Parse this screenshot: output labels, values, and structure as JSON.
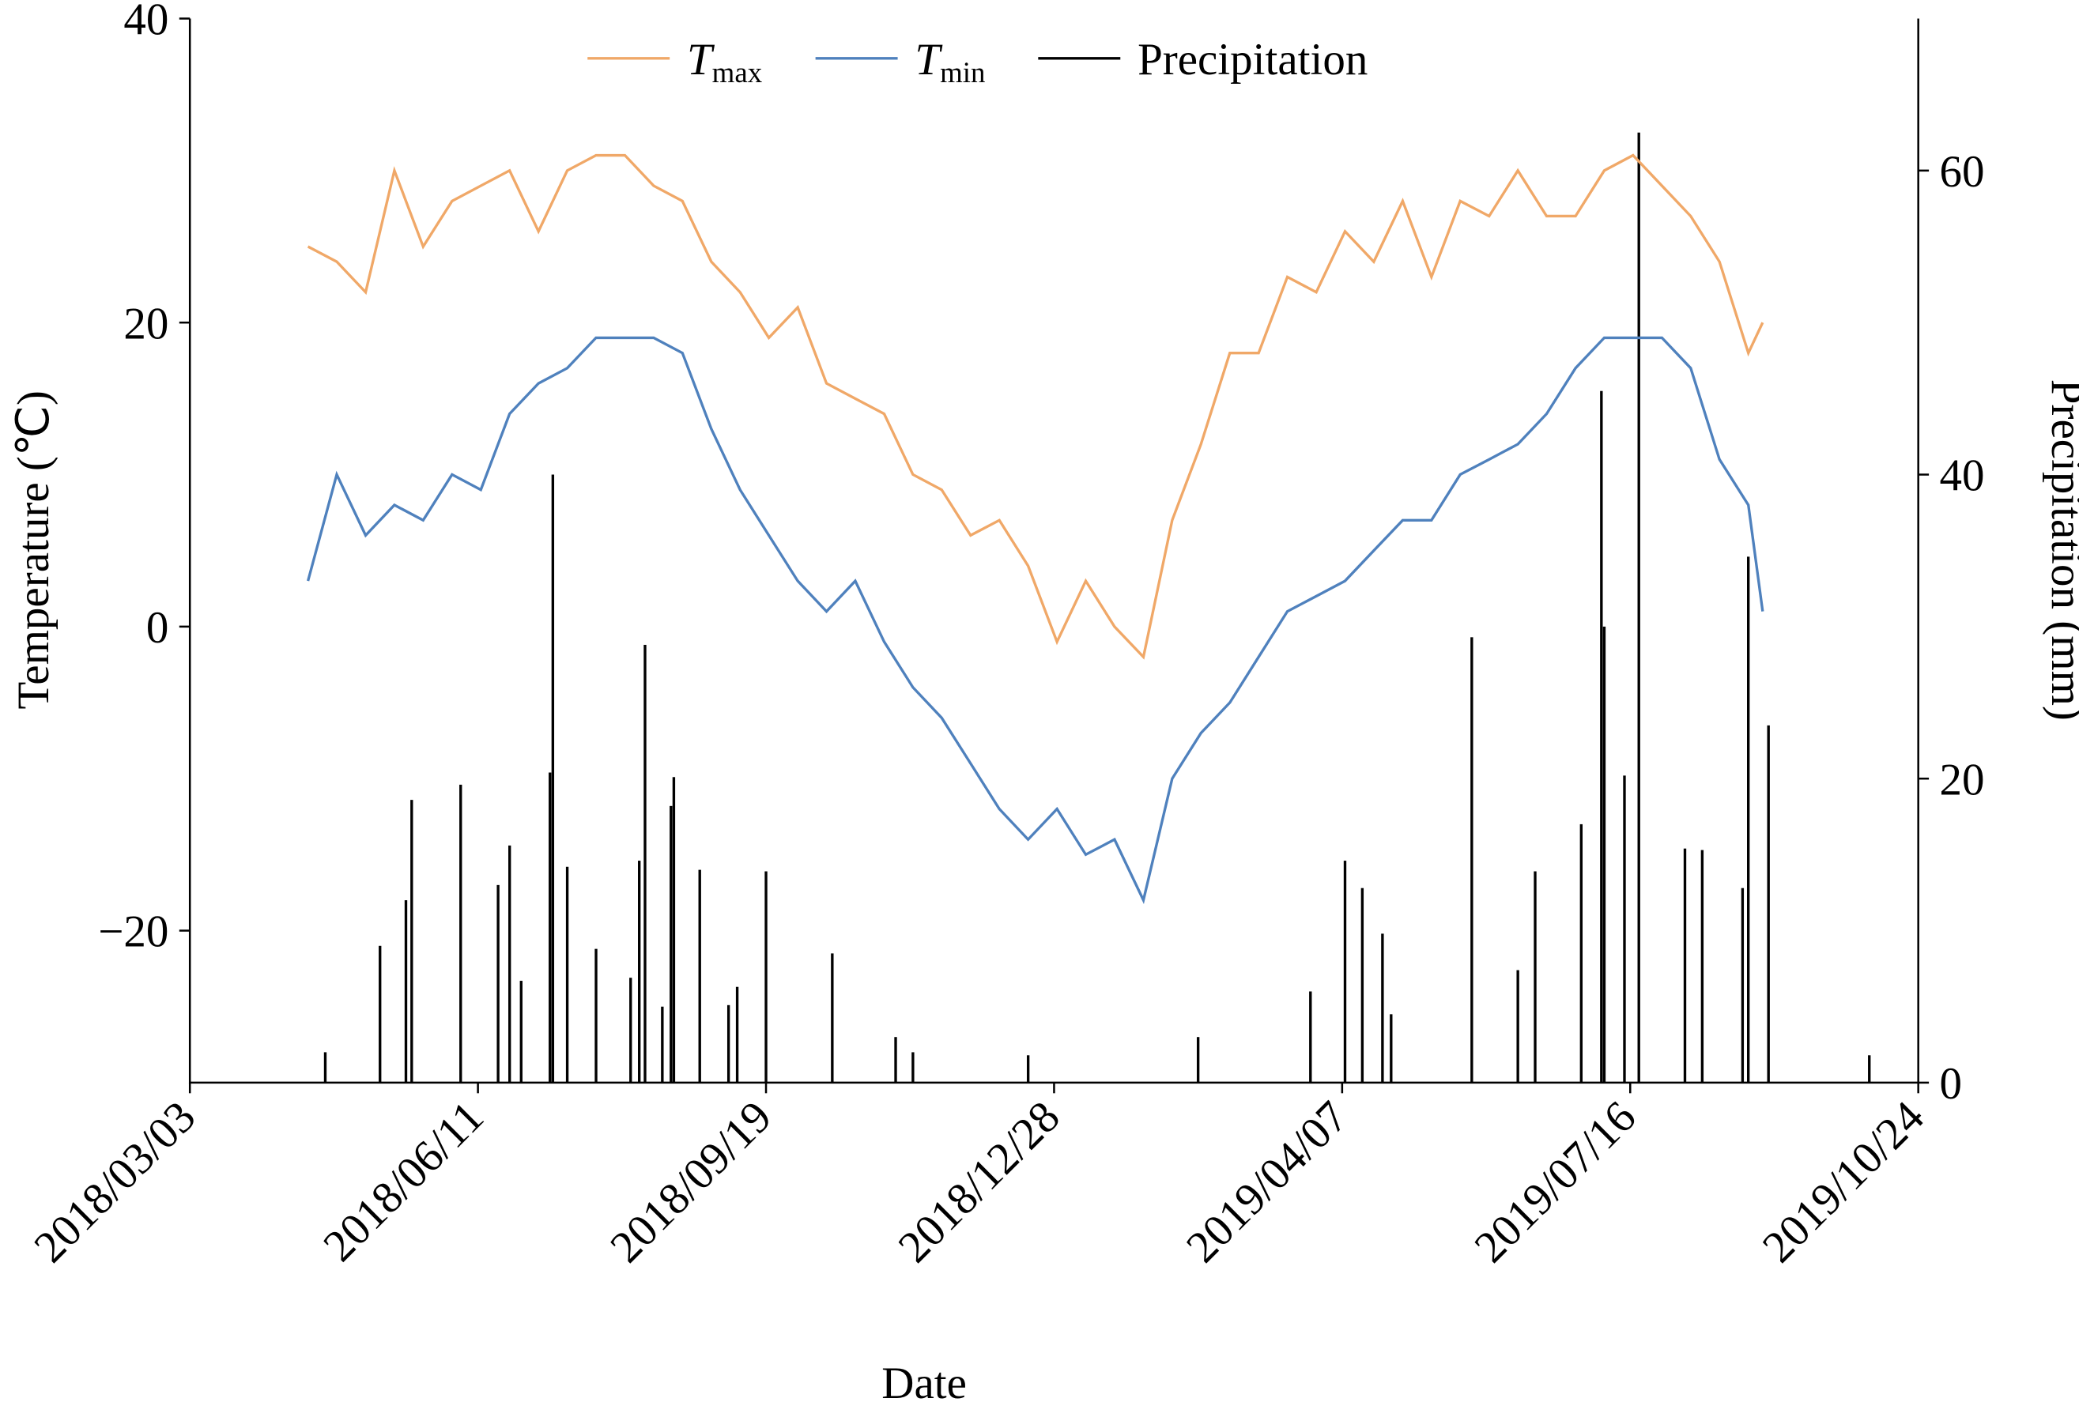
{
  "chart_data": {
    "type": "line",
    "x_label": "Date",
    "y_label": "Temperature (℃)",
    "y2_label": "Precipitation (mm)",
    "xlim": [
      "2018/03/03",
      "2019/10/24"
    ],
    "xticks": [
      "2018/03/03",
      "2018/06/11",
      "2018/09/19",
      "2018/12/28",
      "2019/04/07",
      "2019/07/16",
      "2019/10/24"
    ],
    "ylim": [
      -30,
      40
    ],
    "yticks": [
      {
        "value": -20,
        "label": "−20"
      },
      0,
      20,
      40
    ],
    "y2lim": [
      0,
      70
    ],
    "y2ticks": [
      0,
      20,
      40,
      60
    ],
    "grid": false,
    "legend": "top",
    "x": [
      "2018/04/13",
      "2018/04/23",
      "2018/05/03",
      "2018/05/13",
      "2018/05/23",
      "2018/06/02",
      "2018/06/12",
      "2018/06/22",
      "2018/07/02",
      "2018/07/12",
      "2018/07/22",
      "2018/08/01",
      "2018/08/11",
      "2018/08/21",
      "2018/08/31",
      "2018/09/10",
      "2018/09/20",
      "2018/09/30",
      "2018/10/10",
      "2018/10/20",
      "2018/10/30",
      "2018/11/09",
      "2018/11/19",
      "2018/11/29",
      "2018/12/09",
      "2018/12/19",
      "2018/12/29",
      "2019/01/08",
      "2019/01/18",
      "2019/01/28",
      "2019/02/07",
      "2019/02/17",
      "2019/02/27",
      "2019/03/09",
      "2019/03/19",
      "2019/03/29",
      "2019/04/08",
      "2019/04/18",
      "2019/04/28",
      "2019/05/08",
      "2019/05/18",
      "2019/05/28",
      "2019/06/07",
      "2019/06/17",
      "2019/06/27",
      "2019/07/07",
      "2019/07/17",
      "2019/07/27",
      "2019/08/06",
      "2019/08/16",
      "2019/08/26",
      "2019/08/31"
    ],
    "series": [
      {
        "name": "Tmax",
        "color": "#f0a868",
        "values": [
          25,
          24,
          22,
          30,
          25,
          28,
          29,
          30,
          26,
          30,
          31,
          31,
          29,
          28,
          24,
          22,
          19,
          21,
          16,
          15,
          14,
          10,
          9,
          6,
          7,
          4,
          -1,
          3,
          0,
          -2,
          7,
          12,
          18,
          18,
          23,
          22,
          26,
          24,
          28,
          23,
          28,
          27,
          30,
          27,
          27,
          30,
          31,
          29,
          27,
          24,
          18,
          20
        ]
      },
      {
        "name": "Tmin",
        "color": "#4f81bd",
        "values": [
          3,
          10,
          6,
          8,
          7,
          10,
          9,
          14,
          16,
          17,
          19,
          19,
          19,
          18,
          13,
          9,
          6,
          3,
          1,
          3,
          -1,
          -4,
          -6,
          -9,
          -12,
          -14,
          -12,
          -15,
          -14,
          -18,
          -10,
          -7,
          -5,
          -2,
          1,
          2,
          3,
          5,
          7,
          7,
          10,
          11,
          12,
          14,
          17,
          19,
          19,
          19,
          17,
          11,
          8,
          1
        ]
      },
      {
        "name": "Precipitation",
        "color": "#000000",
        "type": "bar",
        "axis": "y2",
        "x": [
          "2018/04/19",
          "2018/05/08",
          "2018/05/17",
          "2018/05/19",
          "2018/06/05",
          "2018/06/18",
          "2018/06/22",
          "2018/06/26",
          "2018/07/06",
          "2018/07/07",
          "2018/07/12",
          "2018/07/22",
          "2018/08/03",
          "2018/08/06",
          "2018/08/08",
          "2018/08/14",
          "2018/08/17",
          "2018/08/18",
          "2018/08/27",
          "2018/09/06",
          "2018/09/09",
          "2018/09/19",
          "2018/10/12",
          "2018/11/03",
          "2018/11/09",
          "2018/12/19",
          "2019/02/16",
          "2019/03/27",
          "2019/04/08",
          "2019/04/14",
          "2019/04/21",
          "2019/04/24",
          "2019/05/22",
          "2019/06/07",
          "2019/06/13",
          "2019/06/29",
          "2019/07/06",
          "2019/07/07",
          "2019/07/14",
          "2019/07/19",
          "2019/08/04",
          "2019/08/10",
          "2019/08/24",
          "2019/08/26",
          "2019/09/02",
          "2019/10/07"
        ],
        "values": [
          2,
          9,
          12,
          18.6,
          19.6,
          13,
          15.6,
          6.7,
          20.4,
          40,
          14.2,
          8.8,
          6.9,
          14.6,
          28.8,
          5,
          18.2,
          20.1,
          14,
          5.1,
          6.3,
          13.9,
          8.5,
          3,
          2,
          1.8,
          3,
          6,
          14.6,
          12.8,
          9.8,
          4.5,
          29.3,
          7.4,
          13.9,
          17,
          45.5,
          30,
          20.2,
          62.5,
          15.4,
          15.3,
          12.8,
          34.6,
          23.5,
          1.8
        ]
      }
    ]
  }
}
